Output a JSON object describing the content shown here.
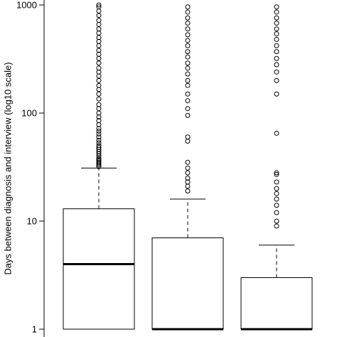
{
  "chart_data": {
    "type": "box",
    "title": "",
    "xlabel": "",
    "ylabel": "Days between diagnosis and interview (log10 scale)",
    "y_scale": "log10",
    "ylim": [
      1,
      1000
    ],
    "y_ticks": [
      {
        "value": 1,
        "label": "1"
      },
      {
        "value": 10,
        "label": "10"
      },
      {
        "value": 100,
        "label": "100"
      },
      {
        "value": 1000,
        "label": "1000"
      }
    ],
    "boxes": [
      {
        "q1": 1,
        "median": 4,
        "q3": 13,
        "whisker_low": 1,
        "whisker_high": 31,
        "outliers": [
          32,
          33,
          34,
          35,
          36,
          37,
          38,
          40,
          42,
          44,
          46,
          48,
          50,
          53,
          56,
          60,
          64,
          68,
          72,
          78,
          85,
          92,
          100,
          110,
          120,
          135,
          150,
          165,
          180,
          200,
          220,
          240,
          260,
          290,
          320,
          350,
          380,
          420,
          460,
          500,
          550,
          600,
          660,
          720,
          800,
          880,
          960,
          1000
        ]
      },
      {
        "q1": 1,
        "median": 1,
        "q3": 7,
        "whisker_low": 1,
        "whisker_high": 16,
        "outliers": [
          19,
          21,
          23,
          25,
          28,
          31,
          35,
          55,
          60,
          95,
          110,
          130,
          150,
          180,
          200,
          230,
          260,
          290,
          330,
          370,
          420,
          470,
          530,
          600,
          680,
          760,
          860,
          960
        ]
      },
      {
        "q1": 1,
        "median": 1,
        "q3": 3,
        "whisker_low": 1,
        "whisker_high": 6,
        "outliers": [
          9,
          10,
          12,
          14,
          16,
          18,
          20,
          23,
          27,
          28,
          65,
          150,
          200,
          240,
          280,
          320,
          370,
          420,
          480,
          540,
          600,
          680,
          760,
          860,
          960
        ]
      }
    ]
  }
}
